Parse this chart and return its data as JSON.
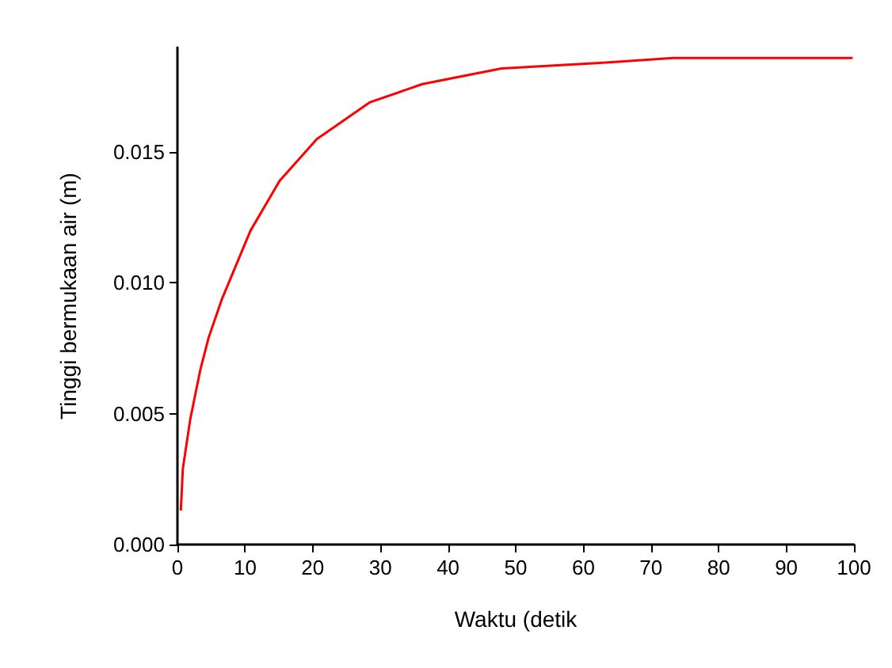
{
  "chart_data": {
    "type": "line",
    "xlabel": "Waktu (detik",
    "ylabel": "Tinggi bermukaan air (m)",
    "x": [
      0.5,
      0.8,
      1.9,
      3.4,
      4.6,
      6.6,
      10.8,
      15.1,
      20.6,
      28.4,
      36.2,
      47.9,
      61.9,
      73.3,
      99.8
    ],
    "series": [
      {
        "color": "#ff0000",
        "values": [
          0.0013,
          0.0029,
          0.0048,
          0.0067,
          0.0079,
          0.0094,
          0.012,
          0.0139,
          0.0155,
          0.0169,
          0.0176,
          0.0182,
          0.0184,
          0.0186,
          0.0186
        ]
      }
    ],
    "xlim": [
      0,
      100
    ],
    "xticks": [
      0,
      10,
      20,
      30,
      40,
      50,
      60,
      70,
      80,
      90,
      100
    ],
    "ylim": [
      0,
      0.019
    ],
    "yticks": [
      {
        "value": 0,
        "label": "0.000"
      },
      {
        "value": 0.005,
        "label": "0.005"
      },
      {
        "value": 0.01,
        "label": "0.010"
      },
      {
        "value": 0.015,
        "label": "0.015"
      }
    ],
    "grid": false,
    "legend": false,
    "marker": "none",
    "line_style": "solid"
  }
}
